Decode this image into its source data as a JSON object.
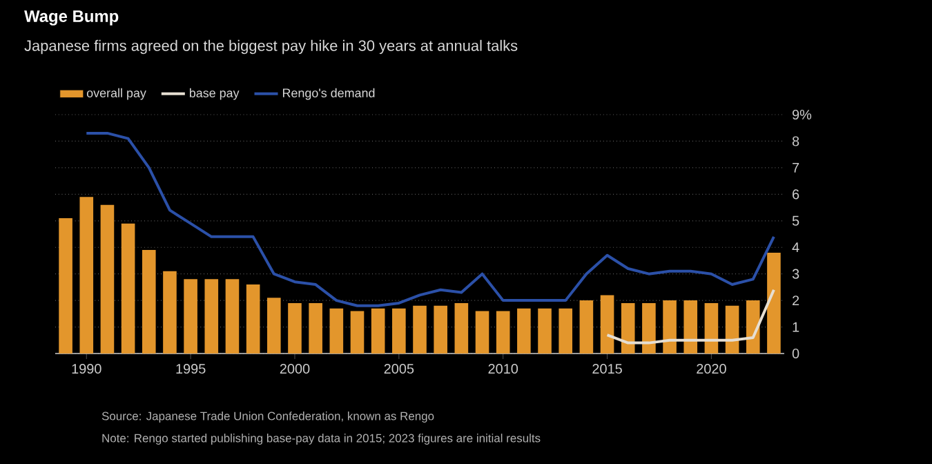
{
  "chart_data": {
    "type": "bar",
    "title": "Wage Bump",
    "subtitle": "Japanese firms agreed on the biggest pay hike in 30 years at annual talks",
    "x": [
      1989,
      1990,
      1991,
      1992,
      1993,
      1994,
      1995,
      1996,
      1997,
      1998,
      1999,
      2000,
      2001,
      2002,
      2003,
      2004,
      2005,
      2006,
      2007,
      2008,
      2009,
      2010,
      2011,
      2012,
      2013,
      2014,
      2015,
      2016,
      2017,
      2018,
      2019,
      2020,
      2021,
      2022,
      2023
    ],
    "series": [
      {
        "name": "overall pay",
        "color": "#e3962c",
        "values": [
          5.1,
          5.9,
          5.6,
          4.9,
          3.9,
          3.1,
          2.8,
          2.8,
          2.8,
          2.6,
          2.1,
          1.9,
          1.9,
          1.7,
          1.6,
          1.7,
          1.7,
          1.8,
          1.8,
          1.9,
          1.6,
          1.6,
          1.7,
          1.7,
          1.7,
          2.0,
          2.2,
          1.9,
          1.9,
          2.0,
          2.0,
          1.9,
          1.8,
          2.0,
          3.8
        ]
      },
      {
        "name": "base pay",
        "type": "line",
        "color": "#e6ded2",
        "values": [
          null,
          null,
          null,
          null,
          null,
          null,
          null,
          null,
          null,
          null,
          null,
          null,
          null,
          null,
          null,
          null,
          null,
          null,
          null,
          null,
          null,
          null,
          null,
          null,
          null,
          null,
          0.7,
          0.4,
          0.4,
          0.5,
          0.5,
          0.5,
          0.5,
          0.6,
          2.4
        ]
      },
      {
        "name": "Rengo's demand",
        "type": "line",
        "color": "#2b50a8",
        "values": [
          null,
          8.3,
          8.3,
          8.1,
          7.0,
          5.4,
          4.9,
          4.4,
          4.4,
          4.4,
          3.0,
          2.7,
          2.6,
          2.0,
          1.8,
          1.8,
          1.9,
          2.2,
          2.4,
          2.3,
          3.0,
          2.0,
          2.0,
          2.0,
          2.0,
          3.0,
          3.7,
          3.2,
          3.0,
          3.1,
          3.1,
          3.0,
          2.6,
          2.8,
          4.4
        ]
      }
    ],
    "xlim": [
      1988.5,
      2023.5
    ],
    "xticks": [
      1990,
      1995,
      2000,
      2005,
      2010,
      2015,
      2020
    ],
    "ylim": [
      0,
      9
    ],
    "yticks": [
      0,
      1,
      2,
      3,
      4,
      5,
      6,
      7,
      8,
      {
        "value": 9,
        "label": "9%"
      }
    ],
    "grid": "y",
    "legend": "top left",
    "marker": "none",
    "line_style": "solid",
    "annotations": [
      "Source: Japanese Trade Union Confederation, known as Rengo",
      "Note: Rengo started publishing base-pay data in 2015; 2023 figures are initial results"
    ]
  }
}
